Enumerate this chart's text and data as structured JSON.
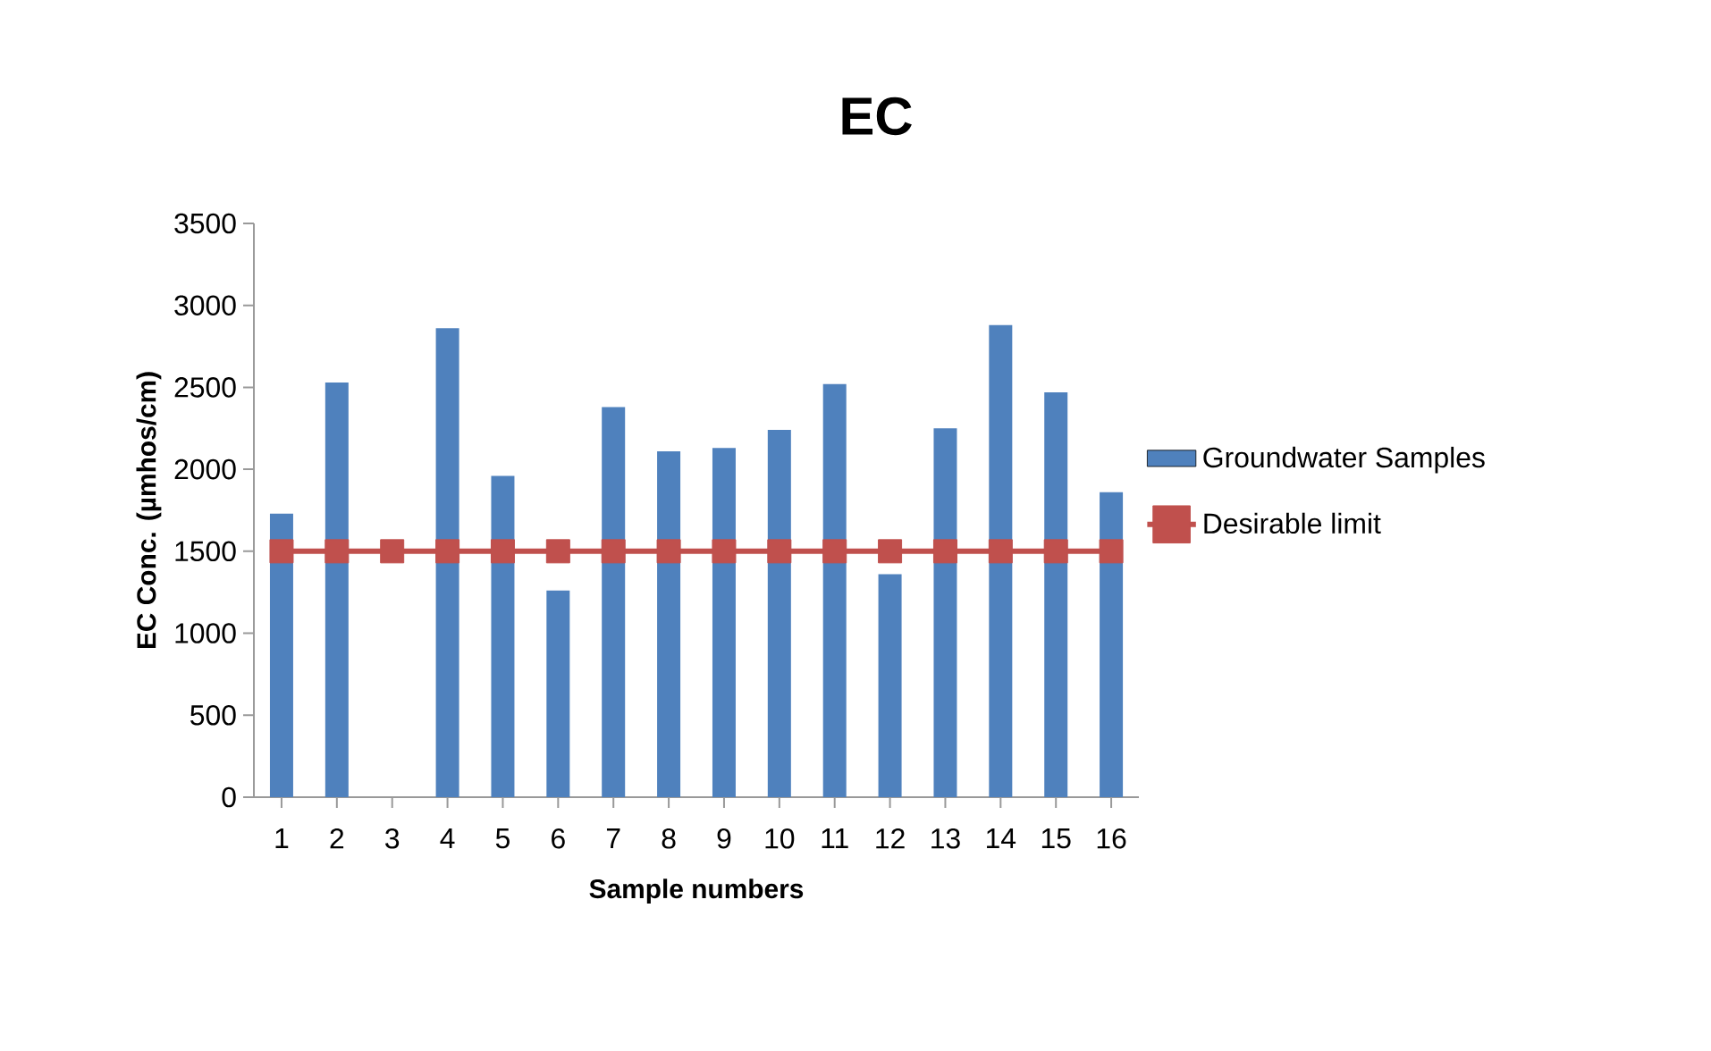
{
  "chart_data": {
    "type": "bar",
    "title": "EC",
    "xlabel": "Sample numbers",
    "ylabel": "EC Conc. (µmhos/cm)",
    "categories": [
      "1",
      "2",
      "3",
      "4",
      "5",
      "6",
      "7",
      "8",
      "9",
      "10",
      "11",
      "12",
      "13",
      "14",
      "15",
      "16"
    ],
    "series": [
      {
        "name": "Groundwater Samples",
        "color": "#4f81bd",
        "values": [
          1730,
          2530,
          null,
          2860,
          1960,
          1260,
          2380,
          2110,
          2130,
          2240,
          2520,
          1360,
          2250,
          2880,
          2470,
          1860
        ]
      },
      {
        "name": "Desirable limit",
        "type": "line",
        "color": "#c0504d",
        "marker": "square",
        "values": [
          1500,
          1500,
          1500,
          1500,
          1500,
          1500,
          1500,
          1500,
          1500,
          1500,
          1500,
          1500,
          1500,
          1500,
          1500,
          1500
        ]
      }
    ],
    "ylim": [
      0,
      3500
    ],
    "yticks": [
      0,
      500,
      1000,
      1500,
      2000,
      2500,
      3000,
      3500
    ],
    "grid": false,
    "legend": "right"
  }
}
